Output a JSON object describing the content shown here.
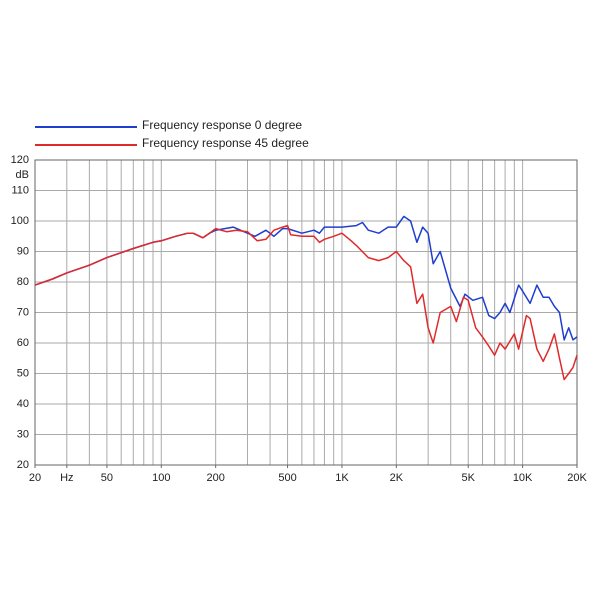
{
  "chart_data": {
    "type": "line",
    "y_label": "dB",
    "log_x": true,
    "grid": true,
    "xlim": [
      20,
      20000
    ],
    "ylim": [
      20,
      120
    ],
    "yticks": [
      20,
      30,
      40,
      50,
      60,
      70,
      80,
      90,
      100,
      110,
      120
    ],
    "xticks": [
      20,
      {
        "value": 30,
        "label": "Hz"
      },
      50,
      100,
      200,
      500,
      {
        "value": 1000,
        "label": "1K"
      },
      {
        "value": 2000,
        "label": "2K"
      },
      {
        "value": 5000,
        "label": "5K"
      },
      {
        "value": 10000,
        "label": "10K"
      },
      {
        "value": 20000,
        "label": "20K"
      }
    ],
    "xgrid": [
      20,
      30,
      40,
      50,
      60,
      70,
      80,
      90,
      100,
      200,
      300,
      400,
      500,
      600,
      700,
      800,
      900,
      1000,
      2000,
      3000,
      4000,
      5000,
      6000,
      7000,
      8000,
      9000,
      10000,
      20000
    ],
    "series": [
      {
        "name": "Frequency response 0 degree",
        "color": "#1e3ed0",
        "x": [
          20,
          25,
          30,
          40,
          50,
          70,
          90,
          100,
          120,
          140,
          150,
          170,
          185,
          200,
          250,
          300,
          330,
          380,
          420,
          470,
          500,
          600,
          700,
          750,
          800,
          1000,
          1200,
          1300,
          1400,
          1600,
          1800,
          2000,
          2200,
          2400,
          2600,
          2800,
          3000,
          3200,
          3500,
          4000,
          4500,
          4800,
          5300,
          6000,
          6500,
          7000,
          7500,
          8000,
          8500,
          9500,
          10000,
          11000,
          12000,
          13000,
          14000,
          15000,
          16000,
          17000,
          18000,
          19000,
          20000
        ],
        "values": [
          79,
          81,
          83,
          85.5,
          88,
          91,
          93,
          93.5,
          95,
          96,
          96,
          94.5,
          96,
          97,
          98,
          96,
          95,
          97,
          95,
          97.5,
          97.5,
          96,
          97,
          96,
          98,
          98,
          98.5,
          99.5,
          97,
          96,
          98,
          98,
          101.5,
          100,
          93,
          98,
          96,
          86,
          90,
          78,
          72,
          76,
          74,
          75,
          69,
          68,
          70,
          73,
          70,
          79,
          77,
          73,
          79,
          75,
          75,
          72,
          70,
          61,
          65,
          61,
          62
        ]
      },
      {
        "name": "Frequency response 45 degree",
        "color": "#e02a2a",
        "x": [
          20,
          25,
          30,
          40,
          50,
          70,
          90,
          100,
          120,
          140,
          150,
          170,
          185,
          200,
          230,
          260,
          300,
          340,
          380,
          420,
          470,
          500,
          520,
          600,
          700,
          750,
          800,
          900,
          1000,
          1100,
          1200,
          1400,
          1600,
          1800,
          2000,
          2200,
          2400,
          2600,
          2800,
          3000,
          3200,
          3500,
          4000,
          4300,
          4700,
          5000,
          5500,
          6000,
          6500,
          7000,
          7500,
          8000,
          9000,
          9500,
          10500,
          11000,
          12000,
          13000,
          14000,
          15000,
          16000,
          17000,
          18000,
          19000,
          20000
        ],
        "values": [
          79,
          81,
          83,
          85.5,
          88,
          91,
          93,
          93.5,
          95,
          96,
          96,
          94.5,
          96,
          97.5,
          96.5,
          97,
          96.5,
          93.5,
          94,
          97,
          98,
          98.5,
          95.5,
          95,
          95,
          93,
          94,
          95,
          96,
          94,
          92,
          88,
          87,
          88,
          90,
          87,
          85,
          73,
          76,
          65,
          60,
          70,
          72,
          67,
          75,
          74,
          65,
          62,
          59,
          56,
          60,
          58,
          63,
          58,
          69,
          68,
          58,
          54,
          58,
          63,
          55,
          48,
          50,
          52,
          56
        ]
      }
    ]
  }
}
